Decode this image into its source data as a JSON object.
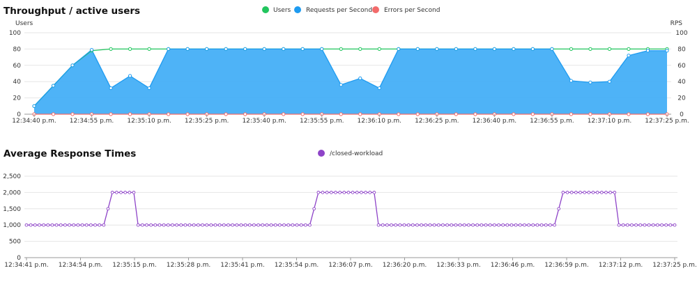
{
  "chart_data": [
    {
      "type": "area",
      "title": "Throughput / active users",
      "ylabel_left": "Users",
      "ylabel_right": "RPS",
      "ylim": [
        0,
        100
      ],
      "yticks": [
        0,
        20,
        40,
        60,
        80,
        100
      ],
      "legend": {
        "placement": "top-center",
        "items": [
          {
            "name": "Users",
            "color": "#22c55e"
          },
          {
            "name": "Requests per Second",
            "color": "#1e9bf0"
          },
          {
            "name": "Errors per Second",
            "color": "#f26b6b"
          }
        ]
      },
      "x": [
        "12:34:40 p.m.",
        "12:34:45 p.m.",
        "12:34:50 p.m.",
        "12:34:55 p.m.",
        "12:35:00 p.m.",
        "12:35:05 p.m.",
        "12:35:10 p.m.",
        "12:35:15 p.m.",
        "12:35:20 p.m.",
        "12:35:25 p.m.",
        "12:35:30 p.m.",
        "12:35:35 p.m.",
        "12:35:40 p.m.",
        "12:35:45 p.m.",
        "12:35:50 p.m.",
        "12:35:55 p.m.",
        "12:36:00 p.m.",
        "12:36:05 p.m.",
        "12:36:10 p.m.",
        "12:36:15 p.m.",
        "12:36:20 p.m.",
        "12:36:25 p.m.",
        "12:36:30 p.m.",
        "12:36:35 p.m.",
        "12:36:40 p.m.",
        "12:36:45 p.m.",
        "12:36:50 p.m.",
        "12:36:55 p.m.",
        "12:37:00 p.m.",
        "12:37:05 p.m.",
        "12:37:10 p.m.",
        "12:37:15 p.m.",
        "12:37:20 p.m.",
        "12:37:25 p.m."
      ],
      "xtick_labels": [
        "12:34:40 p.m.",
        "12:34:55 p.m.",
        "12:35:10 p.m.",
        "12:35:25 p.m.",
        "12:35:40 p.m.",
        "12:35:55 p.m.",
        "12:36:10 p.m.",
        "12:36:25 p.m.",
        "12:36:40 p.m.",
        "12:36:55 p.m.",
        "12:37:10 p.m.",
        "12:37:25 p.m."
      ],
      "series": [
        {
          "name": "Users",
          "color": "#22c55e",
          "values": [
            10,
            35,
            60,
            78,
            80,
            80,
            80,
            80,
            80,
            80,
            80,
            80,
            80,
            80,
            80,
            80,
            80,
            80,
            80,
            80,
            80,
            80,
            80,
            80,
            80,
            80,
            80,
            80,
            80,
            80,
            80,
            80,
            80,
            80
          ]
        },
        {
          "name": "Requests per Second",
          "color": "#1e9bf0",
          "values": [
            10,
            35,
            60,
            79,
            32,
            47,
            32,
            80,
            80,
            80,
            80,
            80,
            80,
            80,
            80,
            80,
            36,
            44,
            32,
            80,
            80,
            80,
            80,
            80,
            80,
            80,
            80,
            80,
            41,
            39,
            40,
            72,
            78,
            78
          ]
        },
        {
          "name": "Errors per Second",
          "color": "#f26b6b",
          "values": [
            0,
            0,
            0,
            0,
            0,
            0,
            0,
            0,
            0,
            0,
            0,
            0,
            0,
            0,
            0,
            0,
            0,
            0,
            0,
            0,
            0,
            0,
            0,
            0,
            0,
            0,
            0,
            0,
            0,
            0,
            0,
            0,
            0,
            0
          ]
        }
      ]
    },
    {
      "type": "line",
      "title": "Average Response Times",
      "ylim": [
        0,
        2500
      ],
      "yticks": [
        "0",
        "500",
        "1,000",
        "1,500",
        "2,000",
        "2,500"
      ],
      "ytick_values": [
        0,
        500,
        1000,
        1500,
        2000,
        2500
      ],
      "legend": {
        "placement": "top-center",
        "items": [
          {
            "name": "/closed-workload",
            "color": "#8e44c8"
          }
        ]
      },
      "xtick_labels": [
        "12:34:41 p.m.",
        "12:34:54 p.m.",
        "12:35:15 p.m.",
        "12:35:28 p.m.",
        "12:35:41 p.m.",
        "12:35:54 p.m.",
        "12:36:07 p.m.",
        "12:36:20 p.m.",
        "12:36:33 p.m.",
        "12:36:46 p.m.",
        "12:36:59 p.m.",
        "12:37:12 p.m.",
        "12:37:25 p.m."
      ],
      "series": [
        {
          "name": "/closed-workload",
          "color": "#8e44c8",
          "values": [
            1000,
            1000,
            1000,
            1000,
            1000,
            1000,
            1000,
            1000,
            1000,
            1000,
            1000,
            1000,
            1000,
            1000,
            1000,
            1000,
            1000,
            1000,
            1000,
            1500,
            2000,
            2000,
            2000,
            2000,
            2000,
            2000,
            1000,
            1000,
            1000,
            1000,
            1000,
            1000,
            1000,
            1000,
            1000,
            1000,
            1000,
            1000,
            1000,
            1000,
            1000,
            1000,
            1000,
            1000,
            1000,
            1000,
            1000,
            1000,
            1000,
            1000,
            1000,
            1000,
            1000,
            1000,
            1000,
            1000,
            1000,
            1000,
            1000,
            1000,
            1000,
            1000,
            1000,
            1000,
            1000,
            1000,
            1000,
            1500,
            2000,
            2000,
            2000,
            2000,
            2000,
            2000,
            2000,
            2000,
            2000,
            2000,
            2000,
            2000,
            2000,
            2000,
            1000,
            1000,
            1000,
            1000,
            1000,
            1000,
            1000,
            1000,
            1000,
            1000,
            1000,
            1000,
            1000,
            1000,
            1000,
            1000,
            1000,
            1000,
            1000,
            1000,
            1000,
            1000,
            1000,
            1000,
            1000,
            1000,
            1000,
            1000,
            1000,
            1000,
            1000,
            1000,
            1000,
            1000,
            1000,
            1000,
            1000,
            1000,
            1000,
            1000,
            1000,
            1000,
            1500,
            2000,
            2000,
            2000,
            2000,
            2000,
            2000,
            2000,
            2000,
            2000,
            2000,
            2000,
            2000,
            2000,
            1000,
            1000,
            1000,
            1000,
            1000,
            1000,
            1000,
            1000,
            1000,
            1000,
            1000,
            1000,
            1000,
            1000
          ]
        }
      ]
    }
  ]
}
